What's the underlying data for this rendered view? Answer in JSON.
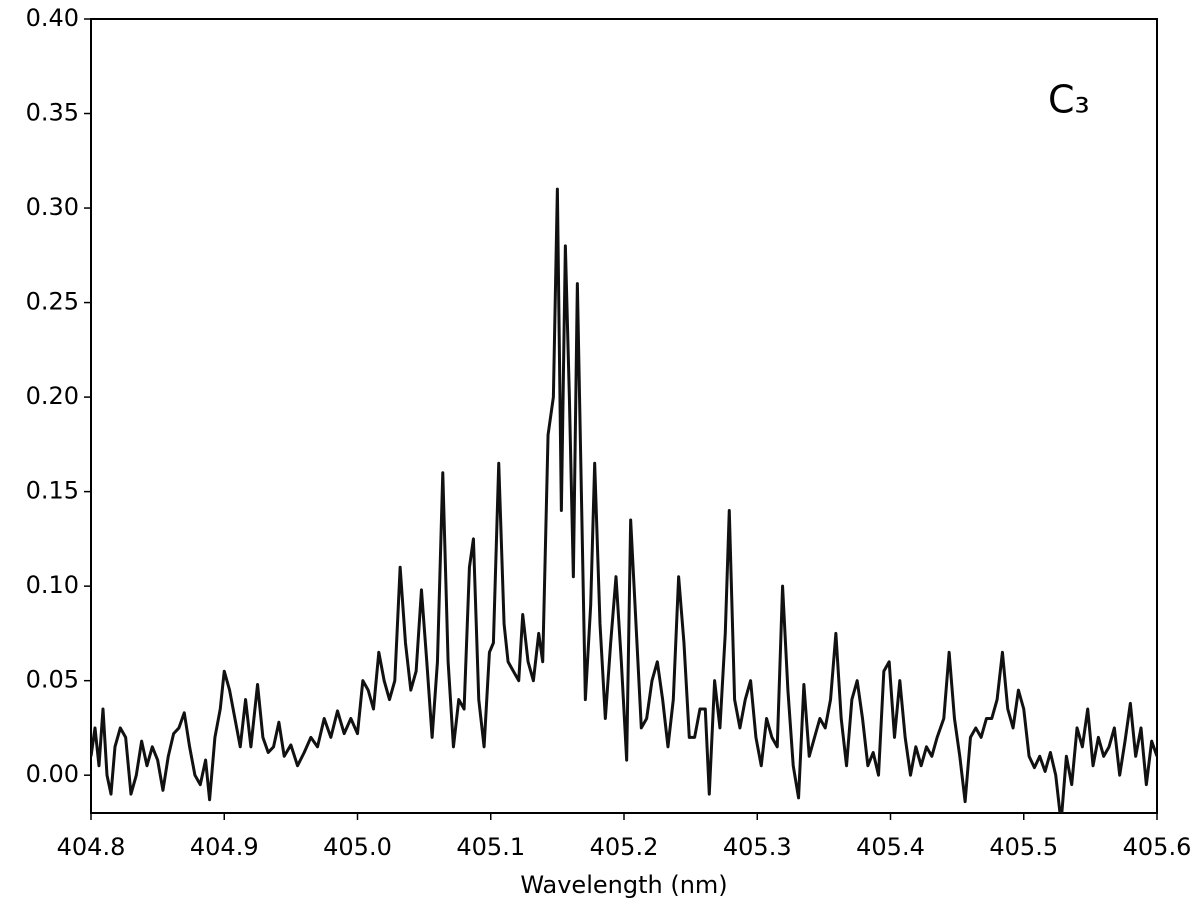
{
  "chart_data": {
    "type": "line",
    "annotation": "C₃",
    "xlabel": "Wavelength (nm)",
    "color": "#111111",
    "xlim": [
      404.8,
      405.6
    ],
    "ylim": [
      -0.02,
      0.4
    ],
    "xticks": [
      404.8,
      404.9,
      {
        "value": 405.0,
        "label": "405.0"
      },
      405.1,
      405.2,
      405.3,
      405.4,
      405.5,
      405.6
    ],
    "yticks": [
      {
        "value": 0.0,
        "label": "0.00"
      },
      {
        "value": 0.05,
        "label": "0.05"
      },
      {
        "value": 0.1,
        "label": "0.10"
      },
      {
        "value": 0.15,
        "label": "0.15"
      },
      {
        "value": 0.2,
        "label": "0.20"
      },
      {
        "value": 0.25,
        "label": "0.25"
      },
      {
        "value": 0.3,
        "label": "0.30"
      },
      {
        "value": 0.35,
        "label": "0.35"
      },
      {
        "value": 0.4,
        "label": "0.40"
      }
    ],
    "x": [
      404.8,
      404.803,
      404.806,
      404.809,
      404.812,
      404.815,
      404.818,
      404.822,
      404.826,
      404.83,
      404.834,
      404.838,
      404.842,
      404.846,
      404.85,
      404.854,
      404.858,
      404.862,
      404.866,
      404.87,
      404.874,
      404.878,
      404.882,
      404.886,
      404.889,
      404.893,
      404.897,
      404.9,
      404.904,
      404.908,
      404.912,
      404.916,
      404.92,
      404.925,
      404.929,
      404.933,
      404.937,
      404.941,
      404.945,
      404.95,
      404.955,
      404.96,
      404.965,
      404.97,
      404.975,
      404.98,
      404.985,
      404.99,
      404.995,
      405.0,
      405.004,
      405.008,
      405.012,
      405.016,
      405.02,
      405.024,
      405.028,
      405.032,
      405.036,
      405.04,
      405.044,
      405.048,
      405.052,
      405.056,
      405.06,
      405.064,
      405.068,
      405.072,
      405.076,
      405.08,
      405.084,
      405.087,
      405.091,
      405.095,
      405.099,
      405.102,
      405.106,
      405.11,
      405.113,
      405.117,
      405.121,
      405.124,
      405.128,
      405.132,
      405.136,
      405.139,
      405.143,
      405.147,
      405.15,
      405.153,
      405.156,
      405.159,
      405.162,
      405.165,
      405.168,
      405.171,
      405.175,
      405.178,
      405.182,
      405.186,
      405.19,
      405.194,
      405.198,
      405.202,
      405.205,
      405.209,
      405.213,
      405.217,
      405.221,
      405.225,
      405.229,
      405.233,
      405.237,
      405.241,
      405.245,
      405.249,
      405.253,
      405.257,
      405.261,
      405.264,
      405.268,
      405.272,
      405.276,
      405.279,
      405.283,
      405.287,
      405.291,
      405.295,
      405.299,
      405.303,
      405.307,
      405.311,
      405.315,
      405.319,
      405.323,
      405.327,
      405.331,
      405.335,
      405.339,
      405.343,
      405.347,
      405.351,
      405.355,
      405.359,
      405.363,
      405.367,
      405.371,
      405.375,
      405.379,
      405.383,
      405.387,
      405.391,
      405.395,
      405.399,
      405.403,
      405.407,
      405.411,
      405.415,
      405.419,
      405.423,
      405.427,
      405.431,
      405.435,
      405.44,
      405.444,
      405.448,
      405.452,
      405.456,
      405.46,
      405.464,
      405.468,
      405.472,
      405.476,
      405.48,
      405.484,
      405.488,
      405.492,
      405.496,
      405.5,
      405.504,
      405.508,
      405.512,
      405.516,
      405.52,
      405.524,
      405.528,
      405.532,
      405.536,
      405.54,
      405.544,
      405.548,
      405.552,
      405.556,
      405.56,
      405.564,
      405.568,
      405.572,
      405.576,
      405.58,
      405.584,
      405.588,
      405.592,
      405.596,
      405.6
    ],
    "values": [
      0.01,
      0.025,
      0.005,
      0.035,
      0.0,
      -0.01,
      0.015,
      0.025,
      0.02,
      -0.01,
      0.0,
      0.018,
      0.005,
      0.015,
      0.008,
      -0.008,
      0.01,
      0.022,
      0.025,
      0.033,
      0.015,
      0.0,
      -0.005,
      0.008,
      -0.013,
      0.02,
      0.035,
      0.055,
      0.045,
      0.03,
      0.015,
      0.04,
      0.015,
      0.048,
      0.02,
      0.012,
      0.015,
      0.028,
      0.01,
      0.016,
      0.005,
      0.012,
      0.02,
      0.015,
      0.03,
      0.02,
      0.034,
      0.022,
      0.03,
      0.022,
      0.05,
      0.045,
      0.035,
      0.065,
      0.05,
      0.04,
      0.05,
      0.11,
      0.07,
      0.045,
      0.055,
      0.098,
      0.06,
      0.02,
      0.06,
      0.16,
      0.06,
      0.015,
      0.04,
      0.035,
      0.11,
      0.125,
      0.04,
      0.015,
      0.065,
      0.07,
      0.165,
      0.08,
      0.06,
      0.055,
      0.05,
      0.085,
      0.06,
      0.05,
      0.075,
      0.06,
      0.18,
      0.2,
      0.31,
      0.14,
      0.28,
      0.2,
      0.105,
      0.26,
      0.15,
      0.04,
      0.09,
      0.165,
      0.08,
      0.03,
      0.07,
      0.105,
      0.06,
      0.008,
      0.135,
      0.08,
      0.025,
      0.03,
      0.05,
      0.06,
      0.04,
      0.015,
      0.04,
      0.105,
      0.07,
      0.02,
      0.02,
      0.035,
      0.035,
      -0.01,
      0.05,
      0.025,
      0.075,
      0.14,
      0.04,
      0.025,
      0.04,
      0.05,
      0.02,
      0.005,
      0.03,
      0.02,
      0.015,
      0.1,
      0.045,
      0.005,
      -0.012,
      0.048,
      0.01,
      0.02,
      0.03,
      0.025,
      0.04,
      0.075,
      0.03,
      0.005,
      0.04,
      0.05,
      0.03,
      0.005,
      0.012,
      0.0,
      0.055,
      0.06,
      0.02,
      0.05,
      0.02,
      0.0,
      0.015,
      0.005,
      0.015,
      0.01,
      0.02,
      0.03,
      0.065,
      0.03,
      0.01,
      -0.014,
      0.02,
      0.025,
      0.02,
      0.03,
      0.03,
      0.04,
      0.065,
      0.035,
      0.025,
      0.045,
      0.035,
      0.01,
      0.004,
      0.01,
      0.002,
      0.012,
      0.0,
      -0.025,
      0.01,
      -0.005,
      0.025,
      0.015,
      0.035,
      0.005,
      0.02,
      0.01,
      0.015,
      0.025,
      0.0,
      0.018,
      0.038,
      0.01,
      0.025,
      -0.005,
      0.018,
      0.01
    ]
  }
}
